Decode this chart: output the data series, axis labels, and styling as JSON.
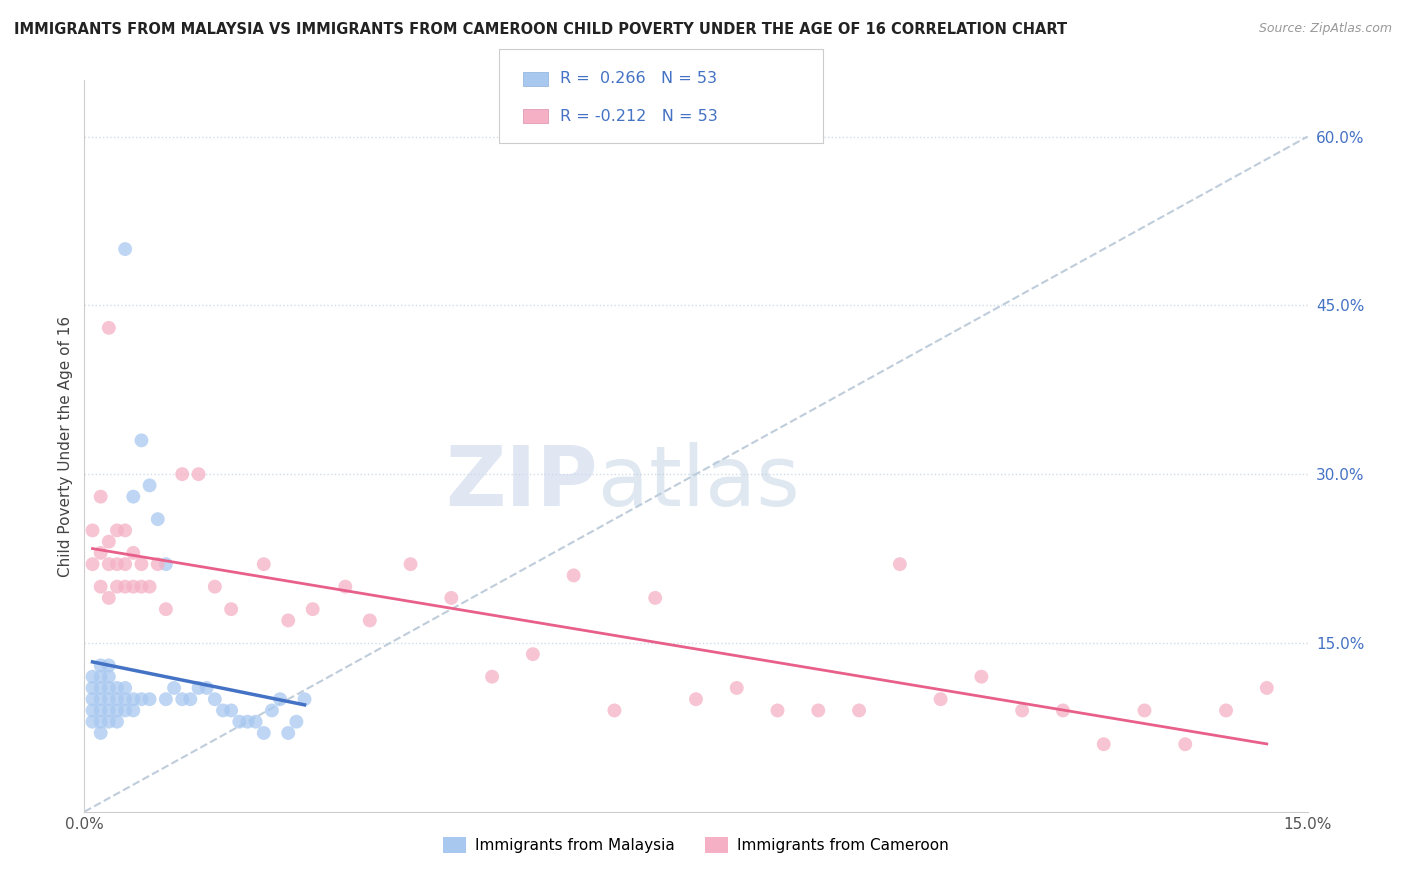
{
  "title": "IMMIGRANTS FROM MALAYSIA VS IMMIGRANTS FROM CAMEROON CHILD POVERTY UNDER THE AGE OF 16 CORRELATION CHART",
  "source": "Source: ZipAtlas.com",
  "ylabel": "Child Poverty Under the Age of 16",
  "y_ticks": [
    0.15,
    0.3,
    0.45,
    0.6
  ],
  "y_tick_labels": [
    "15.0%",
    "30.0%",
    "45.0%",
    "60.0%"
  ],
  "x_range": [
    0,
    0.15
  ],
  "y_range": [
    0,
    0.65
  ],
  "legend_label1": "Immigrants from Malaysia",
  "legend_label2": "Immigrants from Cameroon",
  "R1": 0.266,
  "N1": 53,
  "R2": -0.212,
  "N2": 53,
  "color_malaysia": "#a8c8f0",
  "color_cameroon": "#f5b0c5",
  "color_trend_malaysia": "#4472c4",
  "color_trend_cameroon": "#e8608a",
  "color_trend_dashed": "#b8c8d8",
  "watermark_zip": "ZIP",
  "watermark_atlas": "atlas",
  "background_color": "#ffffff",
  "grid_color": "#d0dce8",
  "malaysia_x": [
    0.001,
    0.001,
    0.001,
    0.001,
    0.001,
    0.002,
    0.002,
    0.002,
    0.002,
    0.002,
    0.002,
    0.002,
    0.003,
    0.003,
    0.003,
    0.003,
    0.003,
    0.003,
    0.004,
    0.004,
    0.004,
    0.004,
    0.005,
    0.005,
    0.005,
    0.005,
    0.006,
    0.006,
    0.006,
    0.007,
    0.007,
    0.008,
    0.008,
    0.009,
    0.01,
    0.01,
    0.011,
    0.012,
    0.013,
    0.014,
    0.015,
    0.016,
    0.017,
    0.018,
    0.019,
    0.02,
    0.021,
    0.022,
    0.023,
    0.024,
    0.025,
    0.026,
    0.027
  ],
  "malaysia_y": [
    0.08,
    0.09,
    0.1,
    0.11,
    0.12,
    0.07,
    0.08,
    0.09,
    0.1,
    0.11,
    0.12,
    0.13,
    0.08,
    0.09,
    0.1,
    0.11,
    0.12,
    0.13,
    0.08,
    0.09,
    0.1,
    0.11,
    0.09,
    0.1,
    0.11,
    0.5,
    0.09,
    0.1,
    0.28,
    0.1,
    0.33,
    0.1,
    0.29,
    0.26,
    0.1,
    0.22,
    0.11,
    0.1,
    0.1,
    0.11,
    0.11,
    0.1,
    0.09,
    0.09,
    0.08,
    0.08,
    0.08,
    0.07,
    0.09,
    0.1,
    0.07,
    0.08,
    0.1
  ],
  "cameroon_x": [
    0.001,
    0.001,
    0.002,
    0.002,
    0.002,
    0.003,
    0.003,
    0.003,
    0.003,
    0.004,
    0.004,
    0.004,
    0.005,
    0.005,
    0.005,
    0.006,
    0.006,
    0.007,
    0.007,
    0.008,
    0.009,
    0.01,
    0.012,
    0.014,
    0.016,
    0.018,
    0.022,
    0.025,
    0.028,
    0.032,
    0.035,
    0.04,
    0.045,
    0.05,
    0.055,
    0.06,
    0.065,
    0.07,
    0.075,
    0.08,
    0.085,
    0.09,
    0.095,
    0.1,
    0.105,
    0.11,
    0.115,
    0.12,
    0.125,
    0.13,
    0.135,
    0.14,
    0.145
  ],
  "cameroon_y": [
    0.22,
    0.25,
    0.2,
    0.23,
    0.28,
    0.19,
    0.22,
    0.24,
    0.43,
    0.2,
    0.22,
    0.25,
    0.2,
    0.22,
    0.25,
    0.2,
    0.23,
    0.2,
    0.22,
    0.2,
    0.22,
    0.18,
    0.3,
    0.3,
    0.2,
    0.18,
    0.22,
    0.17,
    0.18,
    0.2,
    0.17,
    0.22,
    0.19,
    0.12,
    0.14,
    0.21,
    0.09,
    0.19,
    0.1,
    0.11,
    0.09,
    0.09,
    0.09,
    0.22,
    0.1,
    0.12,
    0.09,
    0.09,
    0.06,
    0.09,
    0.06,
    0.09,
    0.11
  ]
}
